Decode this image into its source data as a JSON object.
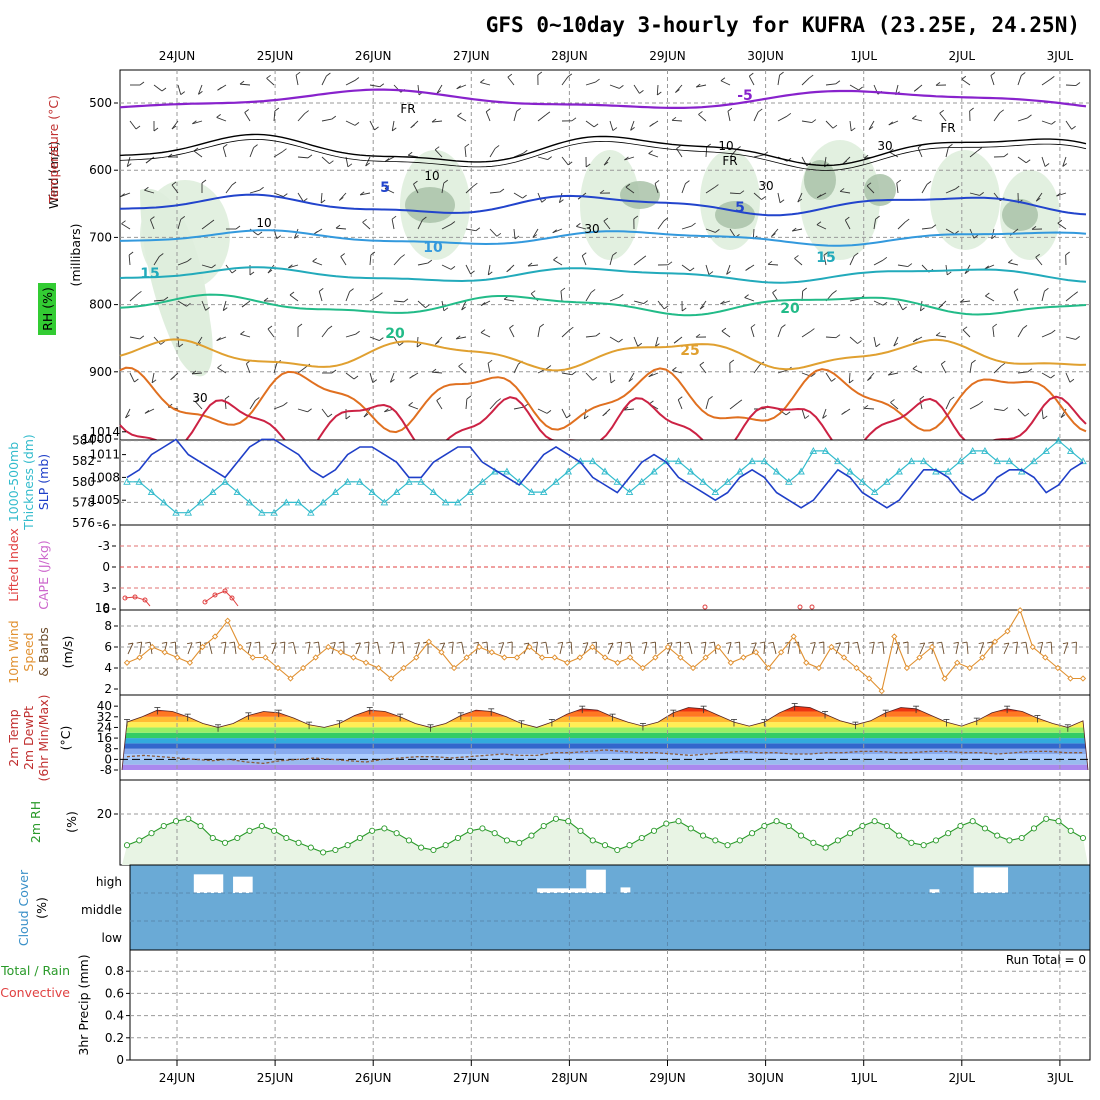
{
  "title": "GFS 0~10day 3-hourly for KUFRA (23.25E, 24.25N)",
  "dates": [
    "24JUN",
    "25JUN",
    "26JUN",
    "27JUN",
    "28JUN",
    "29JUN",
    "30JUN",
    "1JUL",
    "2JUL",
    "3JUL"
  ],
  "colors": {
    "slp": "#1f3fc8",
    "thickness": "#33bbcc",
    "lifted": "#e04040",
    "cape": "#cc66cc",
    "wind10": "#e09030",
    "rh": "#2a9a2a",
    "cloud": "#6aaad6",
    "fr": "#000000"
  },
  "panels": {
    "profile": {
      "ylabel_wind": "Wind (m/s)",
      "ylabel_temp": "Temperature (°C)",
      "ylabel_rh": "RH (%)",
      "ylabel_mb": "(millibars)",
      "yticks": [
        "500",
        "600",
        "700",
        "800",
        "900",
        "1000"
      ],
      "fr_label": "FR",
      "contour_labels": [
        "-5",
        "5",
        "5",
        "10",
        "15",
        "15",
        "20",
        "20",
        "25"
      ],
      "rh_labels": [
        "10",
        "10",
        "10",
        "30",
        "30",
        "30",
        "30"
      ]
    },
    "pressure": {
      "ylabel_thick": "1000-500mb",
      "ylabel_thick2": "Thickness (dm)",
      "ylabel_slp": "SLP (mb)",
      "left_ticks": [
        "576",
        "578",
        "580",
        "582",
        "584"
      ],
      "right_ticks": [
        "1005",
        "1008",
        "1011",
        "1014"
      ]
    },
    "instability": {
      "ylabel_li": "Lifted Index",
      "ylabel_cape": "CAPE (J/kg)",
      "left_ticks": [
        "6",
        "3",
        "0",
        "-3",
        "-6"
      ],
      "cape_tick": "10"
    },
    "wind10": {
      "ylabel1": "10m Wind",
      "ylabel2": "Speed",
      "ylabel3": "& Barbs",
      "ylabel4": "(m/s)",
      "ticks": [
        "2",
        "4",
        "6",
        "8"
      ]
    },
    "temp2m": {
      "ylabel1": "2m Temp",
      "ylabel2": "2m DewPt",
      "ylabel3": "(6hr Min/Max)",
      "ylabel4": "(°C)",
      "ticks": [
        "-8",
        "0",
        "8",
        "16",
        "24",
        "32",
        "40"
      ]
    },
    "rh2m": {
      "ylabel1": "2m RH",
      "ylabel2": "(%)",
      "ticks": [
        "20"
      ]
    },
    "cloud": {
      "ylabel1": "Cloud Cover",
      "ylabel2": "(%)",
      "levels": [
        "high",
        "middle",
        "low"
      ]
    },
    "precip": {
      "ylabel1": "Total / Rain",
      "ylabel2": "Convective",
      "ylabel3": "3hr Precip (mm)",
      "ticks": [
        "0",
        "0.2",
        "0.4",
        "0.6",
        "0.8"
      ],
      "run_total": "Run Total = 0"
    }
  },
  "chart_data": {
    "type": "line",
    "x_unit": "3-hourly forecast steps",
    "x_dates": [
      "24JUN",
      "25JUN",
      "26JUN",
      "27JUN",
      "28JUN",
      "29JUN",
      "30JUN",
      "1JUL",
      "2JUL",
      "3JUL"
    ],
    "slp_mb": [
      1008,
      1009,
      1011,
      1012,
      1013,
      1011,
      1010,
      1009,
      1008,
      1010,
      1012,
      1013,
      1013,
      1012,
      1011,
      1009,
      1008,
      1009,
      1011,
      1012,
      1012,
      1011,
      1010,
      1008,
      1008,
      1010,
      1011,
      1012,
      1012,
      1010,
      1009,
      1008,
      1007,
      1009,
      1011,
      1012,
      1011,
      1010,
      1008,
      1007,
      1006,
      1008,
      1010,
      1011,
      1010,
      1008,
      1007,
      1006,
      1005,
      1006,
      1008,
      1009,
      1008,
      1006,
      1005,
      1004,
      1005,
      1007,
      1009,
      1008,
      1006,
      1005,
      1004,
      1005,
      1007,
      1009,
      1009,
      1008,
      1006,
      1005,
      1006,
      1008,
      1009,
      1009,
      1008,
      1006,
      1007,
      1009,
      1010
    ],
    "thickness_dm": [
      580,
      580,
      579,
      578,
      577,
      577,
      578,
      579,
      580,
      579,
      578,
      577,
      577,
      578,
      578,
      577,
      578,
      579,
      580,
      580,
      579,
      578,
      579,
      580,
      580,
      579,
      578,
      578,
      579,
      580,
      581,
      581,
      580,
      579,
      579,
      580,
      581,
      582,
      582,
      581,
      580,
      579,
      580,
      581,
      582,
      582,
      581,
      580,
      579,
      580,
      581,
      582,
      582,
      581,
      580,
      581,
      583,
      583,
      582,
      581,
      580,
      579,
      580,
      581,
      582,
      582,
      581,
      581,
      582,
      583,
      583,
      582,
      582,
      581,
      582,
      583,
      584,
      583,
      582
    ],
    "wind10_ms": [
      4.5,
      5,
      6,
      5.5,
      5,
      4.5,
      6,
      7,
      8.5,
      6,
      5,
      5,
      4,
      3,
      4,
      5,
      6,
      5.5,
      5,
      4.5,
      4,
      3,
      4,
      5,
      6.5,
      5.5,
      4,
      5,
      6,
      5.5,
      5,
      5,
      6,
      5,
      5,
      4.5,
      5,
      6,
      5,
      4.5,
      5,
      4,
      5,
      6,
      5,
      4,
      5,
      6,
      4.5,
      5,
      5.5,
      4,
      5.5,
      7,
      4.5,
      4,
      6,
      5,
      4,
      3,
      1.8,
      7,
      4,
      5,
      6,
      3,
      4.5,
      4,
      5,
      6.5,
      7.5,
      9.5,
      6,
      5,
      4,
      3,
      3
    ],
    "temp2m_c": [
      28,
      32,
      37,
      36,
      32,
      27,
      24,
      27,
      33,
      36,
      35,
      31,
      26,
      24,
      27,
      33,
      37,
      36,
      32,
      27,
      24,
      27,
      33,
      37,
      36,
      32,
      27,
      24,
      28,
      34,
      38,
      37,
      32,
      28,
      25,
      28,
      35,
      39,
      38,
      33,
      28,
      25,
      28,
      35,
      40,
      39,
      34,
      29,
      26,
      29,
      35,
      39,
      38,
      33,
      28,
      25,
      29,
      35,
      38,
      36,
      31,
      27,
      24,
      29
    ],
    "dewpt2m_c": [
      2,
      3,
      2,
      1,
      0,
      -1,
      0,
      -2,
      -3,
      -1,
      0,
      1,
      0,
      -1,
      -2,
      0,
      1,
      2,
      2,
      1,
      2,
      3,
      4,
      3,
      3,
      5,
      5,
      6,
      7,
      6,
      5,
      5,
      4,
      3,
      4,
      5,
      6,
      5,
      5,
      4,
      4,
      5,
      5,
      6,
      6,
      5,
      5,
      6,
      6,
      5,
      5,
      4,
      5,
      6,
      6,
      5,
      5
    ],
    "rh2m_pct": [
      7,
      9,
      12,
      15,
      17,
      18,
      15,
      10,
      8,
      10,
      13,
      15,
      13,
      10,
      8,
      6,
      4,
      5,
      7,
      10,
      13,
      14,
      12,
      9,
      6,
      5,
      7,
      10,
      13,
      14,
      12,
      9,
      8,
      11,
      15,
      18,
      17,
      13,
      9,
      7,
      5,
      7,
      10,
      13,
      16,
      17,
      14,
      11,
      9,
      7,
      9,
      12,
      15,
      17,
      15,
      11,
      8,
      6,
      9,
      12,
      15,
      17,
      15,
      11,
      8,
      7,
      9,
      12,
      15,
      17,
      14,
      11,
      9,
      10,
      14,
      18,
      17,
      13,
      10
    ],
    "cloud_high_blocks": [
      {
        "x": [
          0.6,
          0.9
        ],
        "cover_pct": 40
      },
      {
        "x": [
          1.0,
          1.2
        ],
        "cover_pct": 35
      },
      {
        "x": [
          4.1,
          4.6
        ],
        "cover_pct": 10
      },
      {
        "x": [
          4.6,
          4.8
        ],
        "cover_pct": 50
      },
      {
        "x": [
          4.95,
          5.05
        ],
        "cover_pct": 12
      },
      {
        "x": [
          8.1,
          8.2
        ],
        "cover_pct": 8
      },
      {
        "x": [
          8.55,
          8.9
        ],
        "cover_pct": 55
      }
    ],
    "precip_mm": [],
    "run_total": "Run Total = 0"
  }
}
